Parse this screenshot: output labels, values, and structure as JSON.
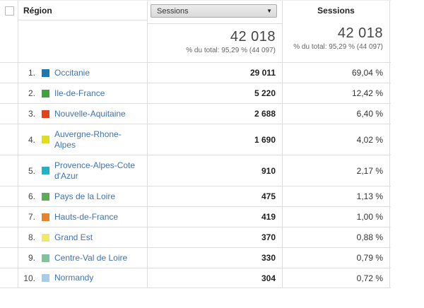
{
  "header": {
    "dimension_label": "Région",
    "metric_dropdown_value": "Sessions",
    "dropdown_arrow": "▼",
    "metric_column_label": "Sessions",
    "totals": {
      "sessions_value": "42 018",
      "sessions_subtext": "% du total: 95,29 % (44 097)",
      "percent_value": "42 018",
      "percent_subtext": "% du total: 95,29 % (44 097)"
    }
  },
  "colors": {
    "link_blue": "#4173b3",
    "grid_line": "#dddddd"
  },
  "rows": [
    {
      "rank": "1.",
      "color": "#1e77b2",
      "name": "Occitanie",
      "sessions": "29 011",
      "percent": "69,04 %"
    },
    {
      "rank": "2.",
      "color": "#3fa33c",
      "name": "Ile-de-France",
      "sessions": "5 220",
      "percent": "12,42 %"
    },
    {
      "rank": "3.",
      "color": "#e2431e",
      "name": "Nouvelle-Aquitaine",
      "sessions": "2 688",
      "percent": "6,40 %"
    },
    {
      "rank": "4.",
      "color": "#ddde1f",
      "name": "Auvergne-Rhone-\nAlpes",
      "sessions": "1 690",
      "percent": "4,02 %"
    },
    {
      "rank": "5.",
      "color": "#22b2c4",
      "name": "Provence-Alpes-Cote\nd'Azur",
      "sessions": "910",
      "percent": "2,17 %"
    },
    {
      "rank": "6.",
      "color": "#5cad57",
      "name": "Pays de la Loire",
      "sessions": "475",
      "percent": "1,13 %"
    },
    {
      "rank": "7.",
      "color": "#e9822e",
      "name": "Hauts-de-France",
      "sessions": "419",
      "percent": "1,00 %"
    },
    {
      "rank": "8.",
      "color": "#edeb66",
      "name": "Grand Est",
      "sessions": "370",
      "percent": "0,88 %"
    },
    {
      "rank": "9.",
      "color": "#82c39e",
      "name": "Centre-Val de Loire",
      "sessions": "330",
      "percent": "0,79 %"
    },
    {
      "rank": "10.",
      "color": "#a7cbe8",
      "name": "Normandy",
      "sessions": "304",
      "percent": "0,72 %"
    }
  ]
}
